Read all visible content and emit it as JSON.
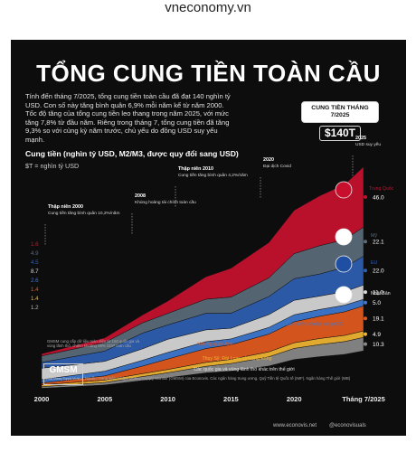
{
  "site": "vneconomy.vn",
  "infographic": {
    "title": "TỔNG CUNG TIỀN TOÀN CẦU",
    "summary": "Tính đến tháng 7/2025, tổng cung tiền toàn cầu đã đạt 140 nghìn tỷ USD. Con số này tăng bình quân 6,9% mỗi năm kể từ năm 2000. Tốc độ tăng của tổng cung tiền leo thang trong năm 2025, với mức tăng 7,8% từ đầu năm. Riêng trong tháng 7, tổng cung tiền đã tăng 9,3% so với cùng kỳ năm trước, chủ yếu do đồng USD suy yếu mạnh.",
    "callout_label": "CUNG TIỀN THÁNG 7/2025",
    "callout_value": "$140T",
    "subtitle": "Cung tiền (nghìn tỷ USD, M2/M3, được quy đổi sang USD)",
    "unit": "$T = nghìn tỷ USD",
    "gmsm_note": "GMSM cung cấp dữ liệu toàn diện từ 160 quốc gia và vùng lãnh thổ, chiếm khoảng 99% GDP toàn cầu",
    "gmsm_logo": "GMSM",
    "gmsm_logo_sub": "Global Money Supply Monitor",
    "source": "Nguồn: Sáng kiến Global Money Supply Monitor (GMSM) của Econovis. Các ngân hàng trung ương. Quỹ Tiền tệ Quốc tế (IMF). Ngân hàng Thế giới (WB)",
    "site_url": "www.econovis.net",
    "social": "@econovisuals"
  },
  "chart_data": {
    "type": "area",
    "stacked": true,
    "x": [
      2000,
      2005,
      2008,
      2010,
      2013,
      2015,
      2018,
      2020,
      2022,
      2024,
      2025.5
    ],
    "x_ticks": [
      "2000",
      "2005",
      "2010",
      "2015",
      "2020",
      "Tháng 7/2025"
    ],
    "series": [
      {
        "name": "Trung Quốc",
        "color": "#c8102e",
        "values": [
          1.6,
          3.5,
          6.0,
          9.5,
          17.0,
          22.0,
          27.0,
          33.0,
          38.0,
          42.0,
          46.0
        ],
        "end_label": "46.0"
      },
      {
        "name": "Mỹ",
        "color": "#5a6b7a",
        "values": [
          4.9,
          6.6,
          7.8,
          8.7,
          10.8,
          12.3,
          14.2,
          19.1,
          21.6,
          21.2,
          22.1
        ],
        "end_label": "22.1"
      },
      {
        "name": "EU",
        "color": "#2f5fb3",
        "values": [
          4.5,
          7.8,
          12.0,
          11.0,
          12.6,
          11.5,
          13.8,
          16.5,
          16.8,
          18.5,
          22.0
        ],
        "end_label": "22.0"
      },
      {
        "name": "Nhật Bản",
        "color": "#d9d9d9",
        "values": [
          8.7,
          7.5,
          8.8,
          10.0,
          9.0,
          8.1,
          9.8,
          11.0,
          10.2,
          10.4,
          11.0
        ],
        "end_label": "11.0"
      },
      {
        "name": "Các nước còn lại trong G20",
        "color": "#3f79d1",
        "values": [
          2.6,
          3.6,
          4.4,
          5.0,
          5.3,
          4.4,
          5.1,
          5.4,
          5.2,
          5.0,
          5.0
        ],
        "end_label": "5.0"
      },
      {
        "name": "Vương quốc Anh",
        "color": "#e45a1e",
        "values": [
          1.4,
          3.2,
          5.8,
          8.0,
          10.5,
          11.2,
          13.5,
          16.0,
          17.0,
          18.0,
          19.1
        ],
        "end_label": "19.1"
      },
      {
        "name": "Thụy Sỹ, Đài Loan và Hồng Kông",
        "color": "#f2b632",
        "values": [
          1.4,
          1.8,
          2.2,
          2.5,
          3.0,
          3.2,
          3.8,
          4.3,
          4.6,
          4.7,
          4.9
        ],
        "end_label": "4.9"
      },
      {
        "name": "Các quốc gia và vùng lãnh thổ khác trên thế giới",
        "color": "#8a8a8a",
        "values": [
          1.2,
          2.0,
          3.0,
          3.8,
          5.0,
          5.8,
          7.0,
          8.5,
          9.2,
          9.8,
          10.3
        ],
        "end_label": "10.3"
      }
    ],
    "start_labels": [
      "1.6",
      "4.9",
      "4.5",
      "8.7",
      "2.6",
      "1.4",
      "1.4",
      "1.2"
    ],
    "annotations": [
      {
        "year": 2000,
        "title": "Thập niên 2000",
        "text": "Cung tiền tăng bình quân 10,2%/năm"
      },
      {
        "year": 2008,
        "title": "2008",
        "text": "Khủng hoảng tài chính toàn cầu"
      },
      {
        "year": 2010,
        "title": "Thập niên 2010",
        "text": "Cung tiền tăng bình quân 4,2%/năm"
      },
      {
        "year": 2020,
        "title": "2020",
        "text": "Đại dịch Covid"
      },
      {
        "year": 2025,
        "title": "2025",
        "text": "USD suy yếu"
      }
    ],
    "grid": false
  }
}
